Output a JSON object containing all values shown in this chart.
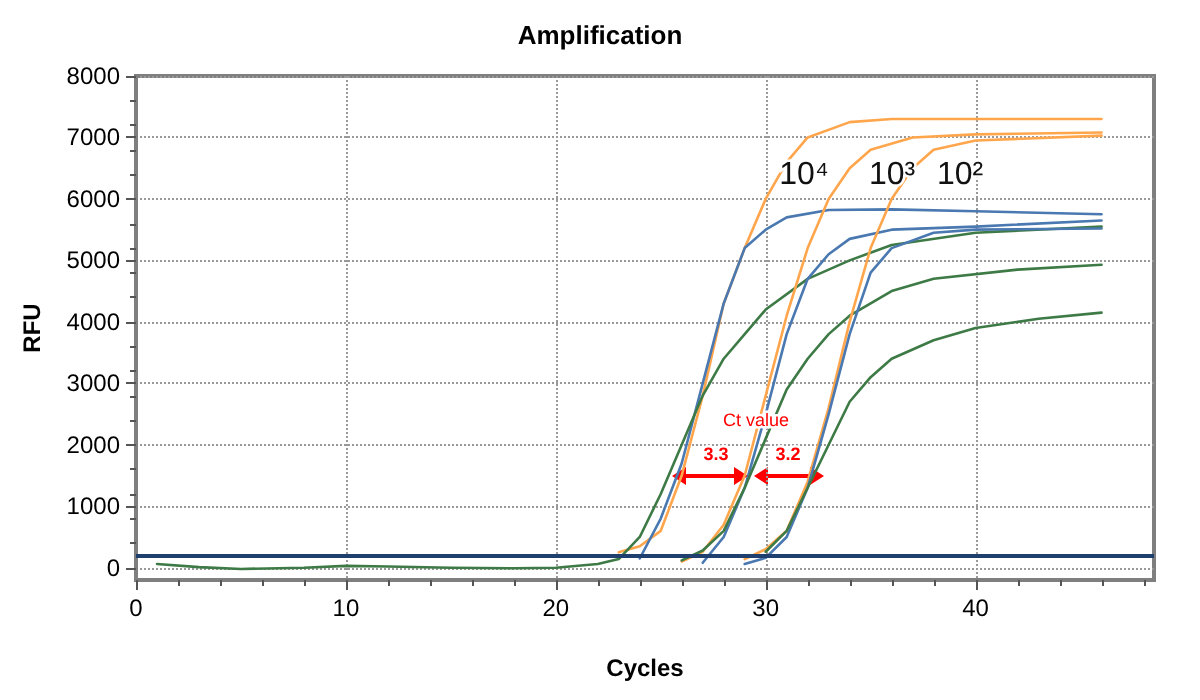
{
  "chart_data": {
    "type": "line",
    "title": "Amplification",
    "xlabel": "Cycles",
    "ylabel": "RFU",
    "xlim": [
      0,
      48.5
    ],
    "xticks": [
      0,
      10,
      20,
      30,
      40
    ],
    "ylim": [
      -200,
      8000
    ],
    "yticks": [
      0,
      1000,
      2000,
      3000,
      4000,
      5000,
      6000,
      7000,
      8000
    ],
    "grid": true,
    "marker": "none",
    "series": [
      {
        "color": "#ffa64d",
        "x": [
          23,
          24,
          25,
          26,
          27,
          28,
          29,
          30,
          31,
          32,
          34,
          36,
          46
        ],
        "values": [
          250,
          350,
          600,
          1500,
          2800,
          4300,
          5200,
          6000,
          6600,
          7000,
          7250,
          7300,
          7300
        ]
      },
      {
        "color": "#4a78b0",
        "x": [
          24,
          25,
          26,
          27,
          28,
          29,
          30,
          31,
          33,
          36,
          40,
          46
        ],
        "values": [
          150,
          800,
          1700,
          3000,
          4300,
          5200,
          5500,
          5700,
          5820,
          5830,
          5800,
          5750
        ]
      },
      {
        "color": "#3d7a45",
        "x": [
          1,
          3,
          5,
          8,
          10,
          12,
          15,
          18,
          20,
          22,
          23,
          24,
          25,
          26,
          27,
          28,
          29,
          30,
          32,
          34,
          36,
          40,
          46
        ],
        "values": [
          60,
          10,
          -20,
          0,
          30,
          20,
          0,
          -10,
          0,
          60,
          140,
          500,
          1200,
          2000,
          2800,
          3400,
          3800,
          4200,
          4700,
          5000,
          5250,
          5450,
          5550
        ]
      },
      {
        "color": "#ffa64d",
        "x": [
          26,
          27,
          28,
          29,
          30,
          31,
          32,
          33,
          34,
          35,
          37,
          40,
          46
        ],
        "values": [
          100,
          260,
          700,
          1500,
          2800,
          4100,
          5200,
          6000,
          6500,
          6800,
          7000,
          7050,
          7080
        ]
      },
      {
        "color": "#4a78b0",
        "x": [
          27,
          28,
          29,
          30,
          31,
          32,
          33,
          34,
          36,
          40,
          46
        ],
        "values": [
          80,
          500,
          1300,
          2500,
          3800,
          4700,
          5100,
          5350,
          5500,
          5550,
          5650
        ]
      },
      {
        "color": "#3d7a45",
        "x": [
          26,
          27,
          28,
          29,
          30,
          31,
          32,
          33,
          34,
          36,
          38,
          42,
          46
        ],
        "values": [
          120,
          280,
          600,
          1300,
          2100,
          2900,
          3400,
          3800,
          4100,
          4500,
          4700,
          4850,
          4930
        ]
      },
      {
        "color": "#ffa64d",
        "x": [
          29,
          30,
          31,
          32,
          33,
          34,
          35,
          36,
          37,
          38,
          40,
          46
        ],
        "values": [
          140,
          300,
          600,
          1400,
          2600,
          4000,
          5200,
          6000,
          6500,
          6800,
          6950,
          7030
        ]
      },
      {
        "color": "#4a78b0",
        "x": [
          29,
          30,
          31,
          32,
          33,
          34,
          35,
          36,
          38,
          40,
          46
        ],
        "values": [
          60,
          160,
          500,
          1300,
          2500,
          3800,
          4800,
          5200,
          5450,
          5500,
          5520
        ]
      },
      {
        "color": "#3d7a45",
        "x": [
          30,
          31,
          32,
          33,
          34,
          35,
          36,
          38,
          40,
          43,
          46
        ],
        "values": [
          260,
          600,
          1300,
          2000,
          2700,
          3100,
          3400,
          3700,
          3900,
          4050,
          4150
        ]
      }
    ],
    "ref_lines": [
      {
        "axis": "y",
        "value": 200,
        "color": "#1f3f6e"
      }
    ],
    "annotations": [
      "10⁴",
      "10³",
      "10²",
      "Ct value",
      "3.3",
      "3.2"
    ]
  }
}
